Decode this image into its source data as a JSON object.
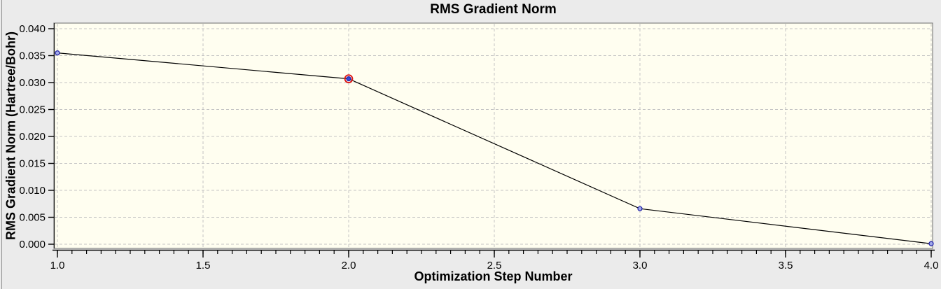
{
  "window": {
    "background": "#EBEBEB",
    "left_edge_color": "#8F8F8F"
  },
  "chart_data": {
    "type": "line",
    "title": "RMS Gradient Norm",
    "xlabel": "Optimization Step Number",
    "ylabel": "RMS Gradient Norm (Hartree/Bohr)",
    "x": [
      1,
      2,
      3,
      4
    ],
    "y": [
      0.0355,
      0.0307,
      0.0066,
      0.0001
    ],
    "selected_point_index": 1,
    "xlim": [
      1.0,
      4.0
    ],
    "ylim": [
      0.0,
      0.04
    ],
    "x_major_ticks": [
      1.0,
      1.5,
      2.0,
      2.5,
      3.0,
      3.5,
      4.0
    ],
    "x_tick_labels": [
      "1.0",
      "1.5",
      "2.0",
      "2.5",
      "3.0",
      "3.5",
      "4.0"
    ],
    "x_minor_tick_step": 0.05,
    "y_ticks": [
      0.0,
      0.005,
      0.01,
      0.015,
      0.02,
      0.025,
      0.03,
      0.035,
      0.04
    ],
    "y_tick_labels": [
      "0.000",
      "0.005",
      "0.010",
      "0.015",
      "0.020",
      "0.025",
      "0.030",
      "0.035",
      "0.040"
    ],
    "grid": "dashed-major",
    "legend": "none",
    "colors": {
      "plot_bg": "#FFFEF0",
      "grid": "#C4C4C4",
      "frame": "#828282",
      "line": "#000000",
      "axis": "#000000",
      "text": "#000000",
      "marker_stroke": "#2020A8",
      "marker_fill": "#9FA8E8",
      "selected_fill": "#3348D8",
      "selected_ring": "#DD1A1A"
    }
  }
}
